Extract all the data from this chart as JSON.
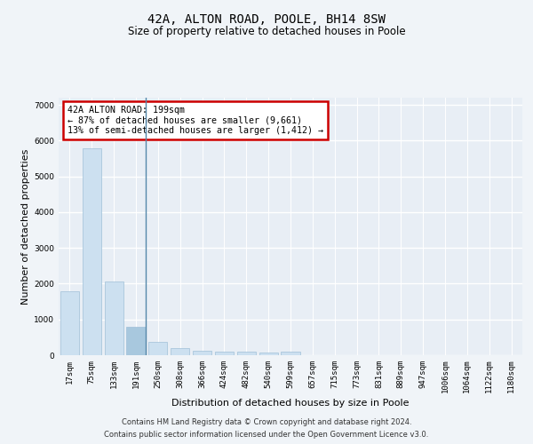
{
  "title": "42A, ALTON ROAD, POOLE, BH14 8SW",
  "subtitle": "Size of property relative to detached houses in Poole",
  "xlabel": "Distribution of detached houses by size in Poole",
  "ylabel": "Number of detached properties",
  "categories": [
    "17sqm",
    "75sqm",
    "133sqm",
    "191sqm",
    "250sqm",
    "308sqm",
    "366sqm",
    "424sqm",
    "482sqm",
    "540sqm",
    "599sqm",
    "657sqm",
    "715sqm",
    "773sqm",
    "831sqm",
    "889sqm",
    "947sqm",
    "1006sqm",
    "1064sqm",
    "1122sqm",
    "1180sqm"
  ],
  "values": [
    1780,
    5780,
    2060,
    800,
    370,
    210,
    130,
    110,
    100,
    70,
    100,
    0,
    0,
    0,
    0,
    0,
    0,
    0,
    0,
    0,
    0
  ],
  "bar_color": "#cce0f0",
  "bar_edge_color": "#a0c0d8",
  "highlight_bar_index": 3,
  "highlight_bar_color": "#a8c8de",
  "annotation_title": "42A ALTON ROAD: 199sqm",
  "annotation_line1": "← 87% of detached houses are smaller (9,661)",
  "annotation_line2": "13% of semi-detached houses are larger (1,412) →",
  "annotation_box_facecolor": "#ffffff",
  "annotation_box_edgecolor": "#cc0000",
  "ylim": [
    0,
    7200
  ],
  "yticks": [
    0,
    1000,
    2000,
    3000,
    4000,
    5000,
    6000,
    7000
  ],
  "fig_bg_color": "#f0f4f8",
  "plot_bg_color": "#e8eef5",
  "grid_color": "#ffffff",
  "footer_line1": "Contains HM Land Registry data © Crown copyright and database right 2024.",
  "footer_line2": "Contains public sector information licensed under the Open Government Licence v3.0.",
  "title_fontsize": 10,
  "subtitle_fontsize": 8.5,
  "footer_fontsize": 6,
  "ylabel_fontsize": 8,
  "xlabel_fontsize": 8,
  "tick_fontsize": 6.5
}
